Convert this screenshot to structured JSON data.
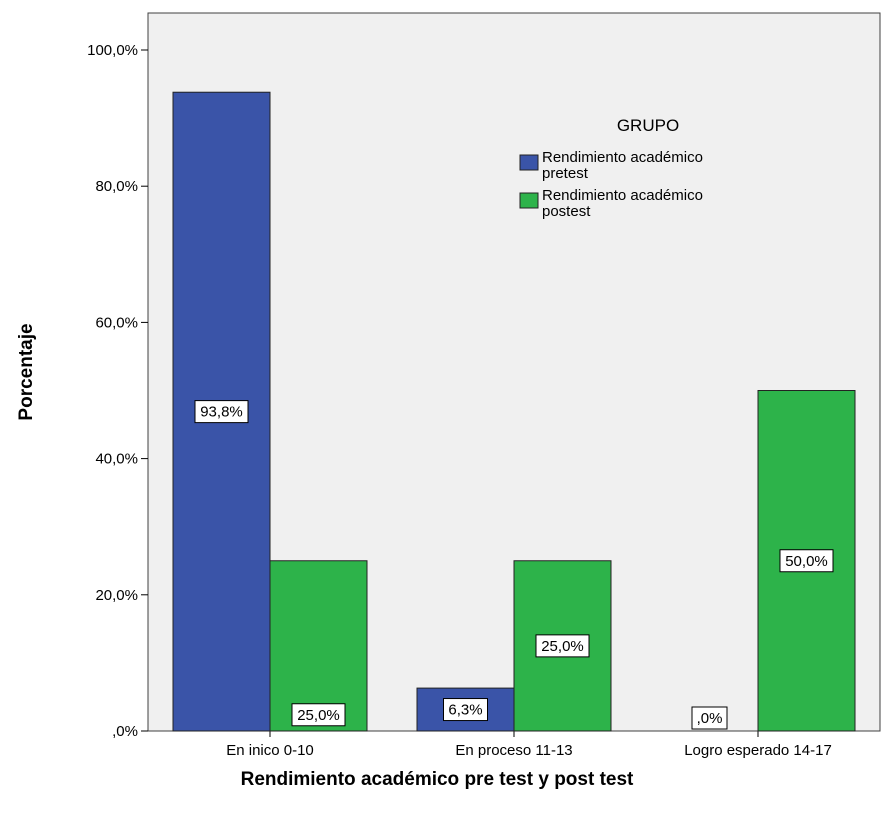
{
  "chart_data": {
    "type": "bar",
    "categories": [
      "En inico 0-10",
      "En proceso 11-13",
      "Logro esperado 14-17"
    ],
    "series": [
      {
        "name": "Rendimiento académico pretest",
        "name_lines": [
          "Rendimiento académico",
          "pretest"
        ],
        "values": [
          93.8,
          6.3,
          0.0
        ],
        "labels": [
          "93,8%",
          "6,3%",
          ",0%"
        ],
        "color": "#3A54A8"
      },
      {
        "name": "Rendimiento académico postest",
        "name_lines": [
          "Rendimiento académico",
          "postest"
        ],
        "values": [
          25.0,
          25.0,
          50.0
        ],
        "labels": [
          "25,0%",
          "25,0%",
          "50,0%"
        ],
        "color": "#2DB34A"
      }
    ],
    "legend_title": "GRUPO",
    "legend_position": "top-right",
    "xlabel": "Rendimiento académico pre test y post test",
    "ylabel": "Porcentaje",
    "ylim": [
      0,
      100
    ],
    "yticks": [
      0,
      20,
      40,
      60,
      80,
      100
    ],
    "ytick_labels": [
      ",0%",
      "20,0%",
      "40,0%",
      "60,0%",
      "80,0%",
      "100,0%"
    ],
    "grid": false,
    "plot_background": "#F0F0F0"
  }
}
